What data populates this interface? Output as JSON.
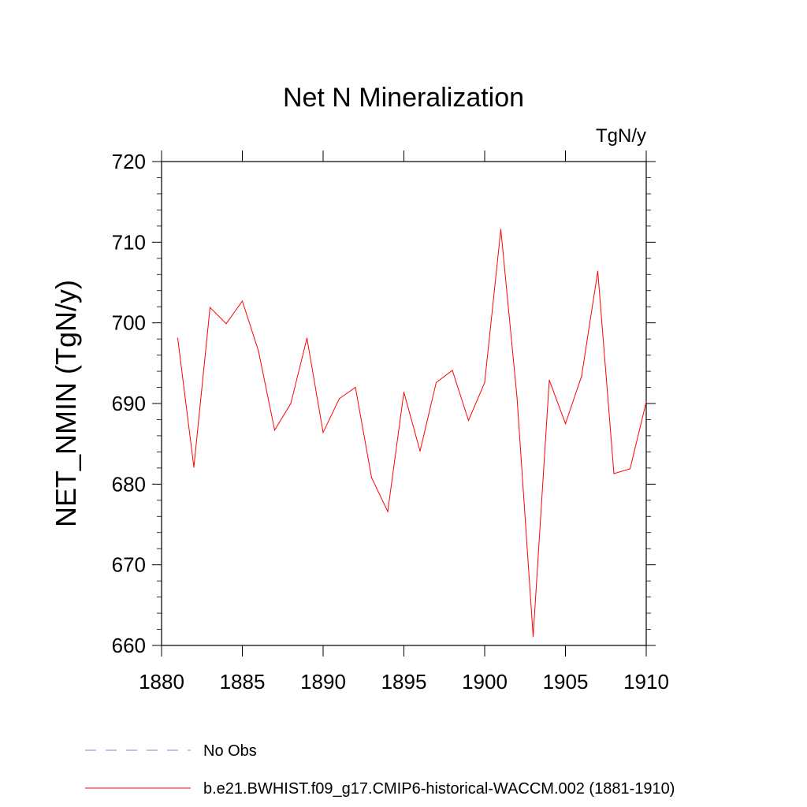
{
  "chart_data": {
    "type": "line",
    "title": "Net N Mineralization",
    "units_label": "TgN/y",
    "ylabel": "NET_NMIN  (TgN/y)",
    "xlabel": "",
    "xlim": [
      1880,
      1910
    ],
    "ylim": [
      660,
      720
    ],
    "x_ticks": [
      1880,
      1885,
      1890,
      1895,
      1900,
      1905,
      1910
    ],
    "y_ticks": [
      660,
      670,
      680,
      690,
      700,
      710,
      720
    ],
    "grid": false,
    "legend_position": "bottom-left",
    "series": [
      {
        "name": "b.e21.BWHIST.f09_g17.CMIP6-historical-WACCM.002 (1881-1910)",
        "color": "#ff0000",
        "style": "solid",
        "x": [
          1881,
          1882,
          1883,
          1884,
          1885,
          1886,
          1887,
          1888,
          1889,
          1890,
          1891,
          1892,
          1893,
          1894,
          1895,
          1896,
          1897,
          1898,
          1899,
          1900,
          1901,
          1902,
          1903,
          1904,
          1905,
          1906,
          1907,
          1908,
          1909,
          1910
        ],
        "values": [
          698.1,
          682.1,
          701.9,
          699.9,
          702.7,
          696.5,
          686.7,
          690.0,
          698.1,
          686.4,
          690.6,
          692.0,
          680.8,
          676.6,
          691.4,
          684.1,
          692.6,
          694.1,
          687.9,
          692.6,
          711.6,
          690.8,
          661.1,
          692.9,
          687.5,
          693.4,
          706.4,
          681.3,
          681.9,
          690.2
        ]
      }
    ],
    "legend": [
      {
        "label": "No Obs",
        "color": "#8080c0",
        "style": "dashed"
      },
      {
        "label": "b.e21.BWHIST.f09_g17.CMIP6-historical-WACCM.002 (1881-1910)",
        "color": "#ff0000",
        "style": "solid"
      }
    ]
  }
}
